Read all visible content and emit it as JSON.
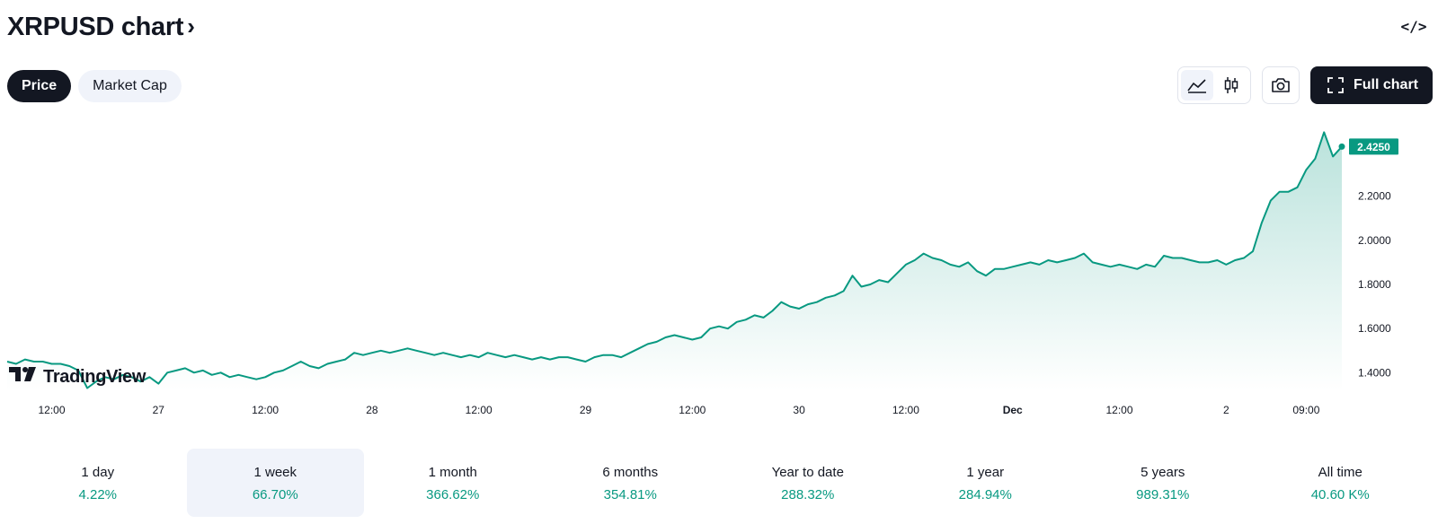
{
  "header": {
    "title": "XRPUSD chart",
    "chevron": "›",
    "embed_icon": "code-icon"
  },
  "tabs": [
    {
      "label": "Price",
      "active": true
    },
    {
      "label": "Market Cap",
      "active": false
    }
  ],
  "toolbar": {
    "line_icon": "area-chart-icon",
    "candle_icon": "candlestick-icon",
    "camera_icon": "camera-icon",
    "full_chart_label": "Full chart",
    "fullscreen_icon": "fullscreen-icon"
  },
  "watermark": {
    "logo": "17",
    "text": "TradingView"
  },
  "colors": {
    "line": "#089981",
    "price_badge": "#089981",
    "positive": "#089981"
  },
  "chart_data": {
    "type": "area",
    "symbol": "XRPUSD",
    "current_price_label": "2.4250",
    "ylim": [
      1.32,
      2.52
    ],
    "y_ticks": [
      "1.4000",
      "1.6000",
      "1.8000",
      "2.0000",
      "2.2000"
    ],
    "x_ticks": [
      {
        "label": "12:00",
        "t": 12
      },
      {
        "label": "27",
        "t": 24
      },
      {
        "label": "12:00",
        "t": 36
      },
      {
        "label": "28",
        "t": 48
      },
      {
        "label": "12:00",
        "t": 60
      },
      {
        "label": "29",
        "t": 72
      },
      {
        "label": "12:00",
        "t": 84
      },
      {
        "label": "30",
        "t": 96
      },
      {
        "label": "12:00",
        "t": 108
      },
      {
        "label": "Dec",
        "t": 120,
        "bold": true
      },
      {
        "label": "12:00",
        "t": 132
      },
      {
        "label": "2",
        "t": 144
      },
      {
        "label": "09:00",
        "t": 153
      }
    ],
    "x_range": [
      7,
      157
    ],
    "series": [
      {
        "points": [
          [
            7,
            1.45
          ],
          [
            8,
            1.44
          ],
          [
            9,
            1.46
          ],
          [
            10,
            1.45
          ],
          [
            11,
            1.45
          ],
          [
            12,
            1.44
          ],
          [
            13,
            1.44
          ],
          [
            14,
            1.43
          ],
          [
            15,
            1.41
          ],
          [
            16,
            1.33
          ],
          [
            17,
            1.36
          ],
          [
            18,
            1.38
          ],
          [
            19,
            1.37
          ],
          [
            20,
            1.39
          ],
          [
            21,
            1.38
          ],
          [
            22,
            1.36
          ],
          [
            23,
            1.38
          ],
          [
            24,
            1.35
          ],
          [
            25,
            1.4
          ],
          [
            26,
            1.41
          ],
          [
            27,
            1.42
          ],
          [
            28,
            1.4
          ],
          [
            29,
            1.41
          ],
          [
            30,
            1.39
          ],
          [
            31,
            1.4
          ],
          [
            32,
            1.38
          ],
          [
            33,
            1.39
          ],
          [
            34,
            1.38
          ],
          [
            35,
            1.37
          ],
          [
            36,
            1.38
          ],
          [
            37,
            1.4
          ],
          [
            38,
            1.41
          ],
          [
            39,
            1.43
          ],
          [
            40,
            1.45
          ],
          [
            41,
            1.43
          ],
          [
            42,
            1.42
          ],
          [
            43,
            1.44
          ],
          [
            44,
            1.45
          ],
          [
            45,
            1.46
          ],
          [
            46,
            1.49
          ],
          [
            47,
            1.48
          ],
          [
            48,
            1.49
          ],
          [
            49,
            1.5
          ],
          [
            50,
            1.49
          ],
          [
            51,
            1.5
          ],
          [
            52,
            1.51
          ],
          [
            53,
            1.5
          ],
          [
            54,
            1.49
          ],
          [
            55,
            1.48
          ],
          [
            56,
            1.49
          ],
          [
            57,
            1.48
          ],
          [
            58,
            1.47
          ],
          [
            59,
            1.48
          ],
          [
            60,
            1.47
          ],
          [
            61,
            1.49
          ],
          [
            62,
            1.48
          ],
          [
            63,
            1.47
          ],
          [
            64,
            1.48
          ],
          [
            65,
            1.47
          ],
          [
            66,
            1.46
          ],
          [
            67,
            1.47
          ],
          [
            68,
            1.46
          ],
          [
            69,
            1.47
          ],
          [
            70,
            1.47
          ],
          [
            71,
            1.46
          ],
          [
            72,
            1.45
          ],
          [
            73,
            1.47
          ],
          [
            74,
            1.48
          ],
          [
            75,
            1.48
          ],
          [
            76,
            1.47
          ],
          [
            77,
            1.49
          ],
          [
            78,
            1.51
          ],
          [
            79,
            1.53
          ],
          [
            80,
            1.54
          ],
          [
            81,
            1.56
          ],
          [
            82,
            1.57
          ],
          [
            83,
            1.56
          ],
          [
            84,
            1.55
          ],
          [
            85,
            1.56
          ],
          [
            86,
            1.6
          ],
          [
            87,
            1.61
          ],
          [
            88,
            1.6
          ],
          [
            89,
            1.63
          ],
          [
            90,
            1.64
          ],
          [
            91,
            1.66
          ],
          [
            92,
            1.65
          ],
          [
            93,
            1.68
          ],
          [
            94,
            1.72
          ],
          [
            95,
            1.7
          ],
          [
            96,
            1.69
          ],
          [
            97,
            1.71
          ],
          [
            98,
            1.72
          ],
          [
            99,
            1.74
          ],
          [
            100,
            1.75
          ],
          [
            101,
            1.77
          ],
          [
            102,
            1.84
          ],
          [
            103,
            1.79
          ],
          [
            104,
            1.8
          ],
          [
            105,
            1.82
          ],
          [
            106,
            1.81
          ],
          [
            107,
            1.85
          ],
          [
            108,
            1.89
          ],
          [
            109,
            1.91
          ],
          [
            110,
            1.94
          ],
          [
            111,
            1.92
          ],
          [
            112,
            1.91
          ],
          [
            113,
            1.89
          ],
          [
            114,
            1.88
          ],
          [
            115,
            1.9
          ],
          [
            116,
            1.86
          ],
          [
            117,
            1.84
          ],
          [
            118,
            1.87
          ],
          [
            119,
            1.87
          ],
          [
            120,
            1.88
          ],
          [
            121,
            1.89
          ],
          [
            122,
            1.9
          ],
          [
            123,
            1.89
          ],
          [
            124,
            1.91
          ],
          [
            125,
            1.9
          ],
          [
            126,
            1.91
          ],
          [
            127,
            1.92
          ],
          [
            128,
            1.94
          ],
          [
            129,
            1.9
          ],
          [
            130,
            1.89
          ],
          [
            131,
            1.88
          ],
          [
            132,
            1.89
          ],
          [
            133,
            1.88
          ],
          [
            134,
            1.87
          ],
          [
            135,
            1.89
          ],
          [
            136,
            1.88
          ],
          [
            137,
            1.93
          ],
          [
            138,
            1.92
          ],
          [
            139,
            1.92
          ],
          [
            140,
            1.91
          ],
          [
            141,
            1.9
          ],
          [
            142,
            1.9
          ],
          [
            143,
            1.91
          ],
          [
            144,
            1.89
          ],
          [
            145,
            1.91
          ],
          [
            146,
            1.92
          ],
          [
            147,
            1.95
          ],
          [
            148,
            2.08
          ],
          [
            149,
            2.18
          ],
          [
            150,
            2.22
          ],
          [
            151,
            2.22
          ],
          [
            152,
            2.24
          ],
          [
            153,
            2.32
          ],
          [
            154,
            2.37
          ],
          [
            155,
            2.49
          ],
          [
            156,
            2.38
          ],
          [
            157,
            2.425
          ]
        ]
      }
    ]
  },
  "periods": [
    {
      "label": "1 day",
      "value": "4.22%",
      "active": false
    },
    {
      "label": "1 week",
      "value": "66.70%",
      "active": true
    },
    {
      "label": "1 month",
      "value": "366.62%",
      "active": false
    },
    {
      "label": "6 months",
      "value": "354.81%",
      "active": false
    },
    {
      "label": "Year to date",
      "value": "288.32%",
      "active": false
    },
    {
      "label": "1 year",
      "value": "284.94%",
      "active": false
    },
    {
      "label": "5 years",
      "value": "989.31%",
      "active": false
    },
    {
      "label": "All time",
      "value": "40.60 K%",
      "active": false
    }
  ]
}
